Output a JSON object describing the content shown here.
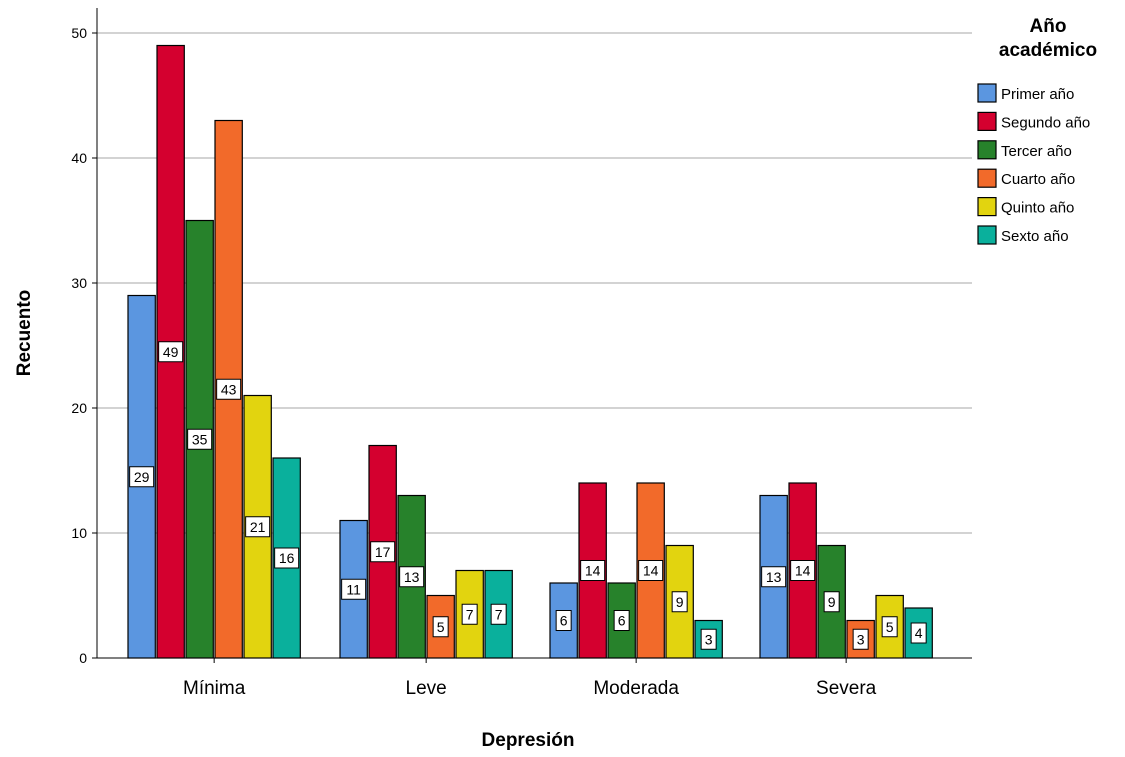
{
  "chart_data": {
    "type": "bar",
    "categories": [
      "Mínima",
      "Leve",
      "Moderada",
      "Severa"
    ],
    "series": [
      {
        "name": "Primer año",
        "color": "#5b96e0",
        "values": [
          29,
          11,
          6,
          13
        ]
      },
      {
        "name": "Segundo año",
        "color": "#d4002f",
        "values": [
          49,
          17,
          14,
          14
        ]
      },
      {
        "name": "Tercer año",
        "color": "#27822b",
        "values": [
          35,
          13,
          6,
          9
        ]
      },
      {
        "name": "Cuarto año",
        "color": "#f26a2a",
        "values": [
          43,
          5,
          14,
          3
        ]
      },
      {
        "name": "Quinto año",
        "color": "#e2d40f",
        "values": [
          21,
          7,
          9,
          5
        ]
      },
      {
        "name": "Sexto año",
        "color": "#0ab09c",
        "values": [
          16,
          7,
          3,
          4
        ]
      }
    ],
    "xlabel": "Depresión",
    "ylabel": "Recuento",
    "ylim": [
      0,
      50
    ],
    "yticks": [
      "0",
      "10",
      "20",
      "30",
      "40",
      "50"
    ],
    "legend_title": "Año académico",
    "legend_position": "top-right",
    "grid": true
  }
}
